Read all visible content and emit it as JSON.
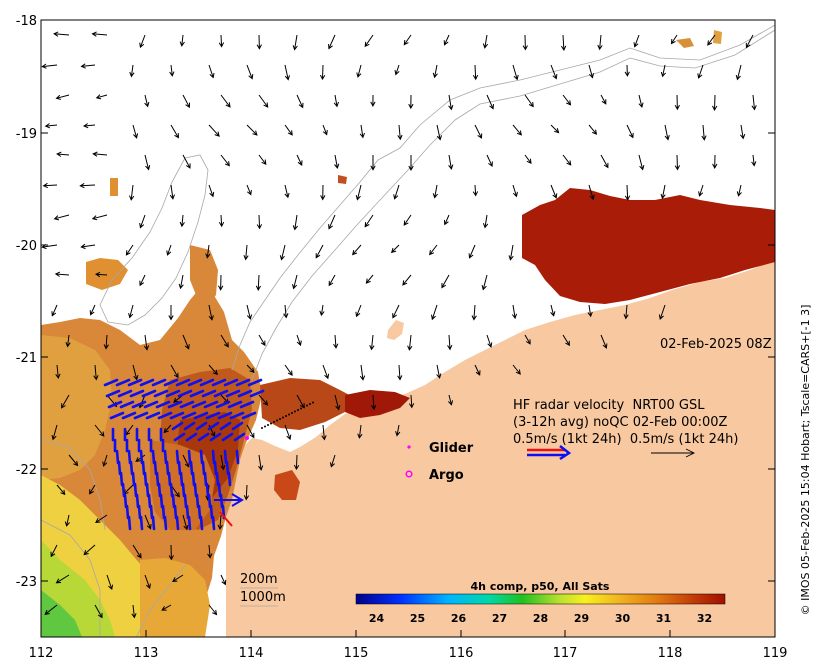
{
  "axes": {
    "x_ticks": [
      "112",
      "113",
      "114",
      "115",
      "116",
      "117",
      "118",
      "119"
    ],
    "y_ticks": [
      "-18",
      "-19",
      "-20",
      "-21",
      "-22",
      "-23"
    ]
  },
  "annotations": {
    "timestamp": "02-Feb-2025 08Z",
    "hf_radar_line1": "HF radar velocity  NRT00 GSL",
    "hf_radar_line2": "(3-12h avg) noQC 02-Feb 00:00Z",
    "hf_radar_line3": "0.5m/s (1kt 24h)  0.5m/s (1kt 24h)",
    "glider_label": "Glider",
    "argo_label": "Argo",
    "depth_200": "200m",
    "depth_1000": "1000m",
    "credit": "© IMOS 05-Feb-2025 15:04 Hobart; Tscale=CARS+[-1 3]"
  },
  "colorbar": {
    "title": "4h comp, p50, All Sats",
    "ticks": [
      "24",
      "25",
      "26",
      "27",
      "28",
      "29",
      "30",
      "31",
      "32"
    ],
    "range": [
      23.5,
      32.5
    ]
  },
  "colors": {
    "land": "#f8c8a0",
    "radar_vector": "#1010ee",
    "glider_marker": "#ff00ff",
    "argo_marker": "#ff00ff",
    "scale_arrow_red": "#ee1111",
    "scale_arrow_blue": "#1010ee"
  }
}
